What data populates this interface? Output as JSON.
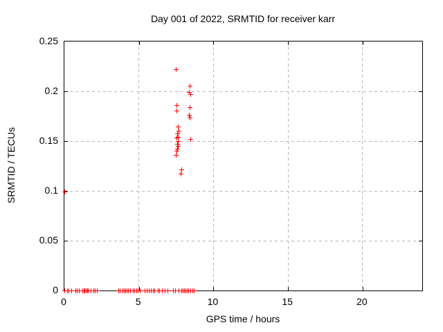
{
  "chart_data": {
    "type": "scatter",
    "title": "Day 001 of 2022, SRMTID for receiver karr",
    "xlabel": "GPS time / hours",
    "ylabel": "SRMTID / TECUs",
    "xlim": [
      0,
      24
    ],
    "ylim": [
      0,
      0.25
    ],
    "xticks": [
      {
        "value": 0,
        "label": "0"
      },
      {
        "value": 5,
        "label": "5"
      },
      {
        "value": 10,
        "label": "10"
      },
      {
        "value": 15,
        "label": "15"
      },
      {
        "value": 20,
        "label": "20"
      }
    ],
    "yticks": [
      {
        "value": 0,
        "label": "0"
      },
      {
        "value": 0.05,
        "label": "0.05"
      },
      {
        "value": 0.1,
        "label": "0.1"
      },
      {
        "value": 0.15,
        "label": "0.15"
      },
      {
        "value": 0.2,
        "label": "0.2"
      },
      {
        "value": 0.25,
        "label": "0.25"
      }
    ],
    "grid": true,
    "legend": "none",
    "marker": "plus",
    "marker_color": "#ff0000",
    "grid_color": "#b5b5b5",
    "series": [
      {
        "name": "SRMTID",
        "points": [
          [
            0.03,
            0.099
          ],
          [
            7.49,
            0.222
          ],
          [
            7.53,
            0.186
          ],
          [
            7.56,
            0.18
          ],
          [
            7.63,
            0.164
          ],
          [
            7.66,
            0.16
          ],
          [
            7.6,
            0.157
          ],
          [
            7.62,
            0.154
          ],
          [
            7.56,
            0.153
          ],
          [
            7.65,
            0.15
          ],
          [
            7.6,
            0.147
          ],
          [
            7.62,
            0.145
          ],
          [
            7.6,
            0.142
          ],
          [
            7.56,
            0.14
          ],
          [
            7.52,
            0.136
          ],
          [
            7.86,
            0.121
          ],
          [
            7.81,
            0.117
          ],
          [
            8.43,
            0.205
          ],
          [
            8.4,
            0.199
          ],
          [
            8.47,
            0.197
          ],
          [
            8.43,
            0.184
          ],
          [
            8.4,
            0.176
          ],
          [
            8.43,
            0.173
          ],
          [
            8.45,
            0.152
          ],
          [
            0.0,
            0
          ],
          [
            0.2,
            0
          ],
          [
            0.3,
            0
          ],
          [
            0.47,
            0
          ],
          [
            0.75,
            0
          ],
          [
            0.85,
            0
          ],
          [
            1.0,
            0
          ],
          [
            1.22,
            0
          ],
          [
            1.3,
            0
          ],
          [
            1.38,
            0
          ],
          [
            1.46,
            0
          ],
          [
            1.55,
            0
          ],
          [
            1.62,
            0
          ],
          [
            1.78,
            0
          ],
          [
            1.95,
            0
          ],
          [
            2.05,
            0
          ],
          [
            2.2,
            0
          ],
          [
            3.63,
            0
          ],
          [
            3.75,
            0
          ],
          [
            3.9,
            0
          ],
          [
            4.0,
            0
          ],
          [
            4.1,
            0
          ],
          [
            4.2,
            0
          ],
          [
            4.3,
            0
          ],
          [
            4.45,
            0
          ],
          [
            4.6,
            0
          ],
          [
            4.73,
            0
          ],
          [
            4.85,
            0
          ],
          [
            4.96,
            0
          ],
          [
            5.08,
            0
          ],
          [
            5.43,
            0
          ],
          [
            5.53,
            0
          ],
          [
            5.69,
            0
          ],
          [
            5.81,
            0
          ],
          [
            5.95,
            0
          ],
          [
            6.05,
            0
          ],
          [
            6.3,
            0
          ],
          [
            6.4,
            0
          ],
          [
            6.57,
            0
          ],
          [
            6.76,
            0
          ],
          [
            6.96,
            0
          ],
          [
            7.3,
            0
          ],
          [
            7.43,
            0
          ],
          [
            7.66,
            0
          ],
          [
            7.85,
            0
          ],
          [
            7.95,
            0
          ],
          [
            8.05,
            0
          ],
          [
            8.15,
            0
          ],
          [
            8.25,
            0
          ],
          [
            8.35,
            0
          ],
          [
            8.48,
            0
          ],
          [
            8.59,
            0
          ],
          [
            8.71,
            0
          ]
        ]
      }
    ]
  }
}
